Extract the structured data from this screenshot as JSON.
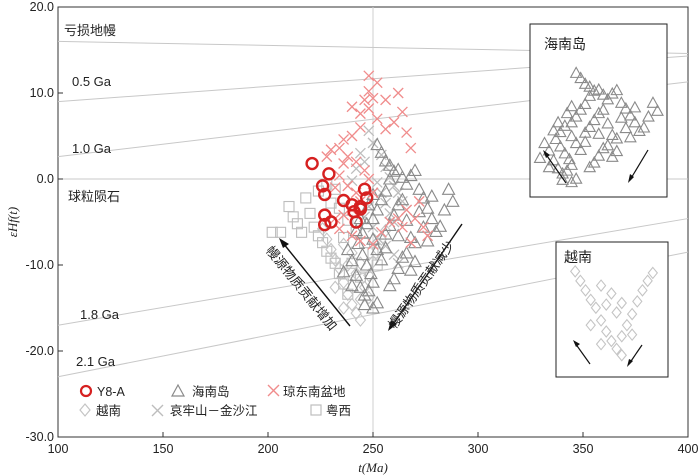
{
  "chart_data": {
    "type": "scatter",
    "xlabel": "t(Ma)",
    "ylabel": "εHf(t)",
    "xlim": [
      100,
      400
    ],
    "ylim": [
      -30,
      20
    ],
    "xticks": [
      "100",
      "150",
      "200",
      "250",
      "300",
      "350",
      "400"
    ],
    "yticks": [
      "20.0",
      "10.0",
      "0.0",
      "-10.0",
      "-20.0",
      "-30.0"
    ],
    "vertical_reference_t": 250,
    "reference_lines": [
      {
        "label": "亏损地幔",
        "y_at_100": 16.0,
        "y_at_400": 14.6
      },
      {
        "label": "0.5 Ga",
        "y_at_100": 9.0,
        "y_at_400": 14.3
      },
      {
        "label": "1.0 Ga",
        "y_at_100": 2.6,
        "y_at_400": 11.3
      },
      {
        "label": "球粒陨石",
        "y_at_100": 0.0,
        "y_at_400": 0.0
      },
      {
        "label": "1.8 Ga",
        "y_at_100": -17.0,
        "y_at_400": -4.6
      },
      {
        "label": "2.1 Ga",
        "y_at_100": -23.0,
        "y_at_400": -8.5
      }
    ],
    "annotations": [
      {
        "text": "幔源物质贡献增加",
        "direction": "up-left"
      },
      {
        "text": "幔源物质贡献减少",
        "direction": "down-left"
      }
    ],
    "legend": [
      {
        "name": "Y8-A",
        "marker": "circle",
        "color": "#d62020"
      },
      {
        "name": "海南岛",
        "marker": "triangle",
        "color": "#8a8a8a"
      },
      {
        "name": "琼东南盆地",
        "marker": "x",
        "color": "#f08c8c"
      },
      {
        "name": "越南",
        "marker": "diamond",
        "color": "#c4c4c4"
      },
      {
        "name": "哀牢山－金沙江",
        "marker": "x",
        "color": "#bdbdbd"
      },
      {
        "name": "粤西",
        "marker": "square",
        "color": "#bdbdbd"
      }
    ],
    "series": [
      {
        "name": "Y8-A",
        "marker": "circle",
        "color": "#d62020",
        "points": [
          [
            221,
            1.8
          ],
          [
            226,
            -0.8
          ],
          [
            227,
            -1.8
          ],
          [
            229,
            0.6
          ],
          [
            227,
            -4.2
          ],
          [
            227,
            -5.3
          ],
          [
            230,
            -5.0
          ],
          [
            236,
            -2.5
          ],
          [
            240,
            -3.0
          ],
          [
            241,
            -3.8
          ],
          [
            244,
            -3.2
          ],
          [
            246,
            -1.2
          ],
          [
            247,
            -2.2
          ],
          [
            242,
            -5.0
          ],
          [
            244,
            -3.5
          ]
        ]
      },
      {
        "name": "海南岛",
        "marker": "triangle",
        "color": "#8a8a8a",
        "points": [
          [
            238,
            -8.2
          ],
          [
            240,
            -9.5
          ],
          [
            242,
            -11.2
          ],
          [
            244,
            -12.6
          ],
          [
            246,
            -13.5
          ],
          [
            248,
            -13.0
          ],
          [
            250,
            -12.0
          ],
          [
            252,
            -14.4
          ],
          [
            249,
            -11.0
          ],
          [
            247,
            -10.0
          ],
          [
            245,
            -8.8
          ],
          [
            243,
            -7.5
          ],
          [
            245,
            -6.3
          ],
          [
            247,
            -5.2
          ],
          [
            250,
            -4.6
          ],
          [
            252,
            -3.6
          ],
          [
            254,
            -2.4
          ],
          [
            256,
            -1.4
          ],
          [
            258,
            0.0
          ],
          [
            260,
            0.9
          ],
          [
            262,
            1.1
          ],
          [
            264,
            0.2
          ],
          [
            266,
            -0.6
          ],
          [
            268,
            0.4
          ],
          [
            270,
            1.0
          ],
          [
            272,
            -1.2
          ],
          [
            274,
            -2.2
          ],
          [
            276,
            -3.4
          ],
          [
            278,
            -4.6
          ],
          [
            280,
            -6.1
          ],
          [
            282,
            -5.5
          ],
          [
            268,
            -6.8
          ],
          [
            270,
            -7.4
          ],
          [
            266,
            -8.6
          ],
          [
            264,
            -9.1
          ],
          [
            262,
            -10.4
          ],
          [
            260,
            -11.6
          ],
          [
            258,
            -12.4
          ],
          [
            254,
            -9.4
          ],
          [
            252,
            -8.2
          ],
          [
            250,
            -7.0
          ],
          [
            256,
            -6.4
          ],
          [
            258,
            -5.4
          ],
          [
            260,
            -4.2
          ],
          [
            262,
            -3.0
          ],
          [
            264,
            -2.4
          ],
          [
            252,
            4.0
          ],
          [
            254,
            3.1
          ],
          [
            256,
            2.1
          ],
          [
            258,
            1.6
          ],
          [
            250,
            -1.8
          ],
          [
            248,
            -3.0
          ],
          [
            270,
            -9.6
          ],
          [
            268,
            -10.6
          ],
          [
            274,
            -5.6
          ],
          [
            276,
            -7.2
          ],
          [
            286,
            -1.2
          ],
          [
            288,
            -2.6
          ],
          [
            284,
            -3.6
          ],
          [
            250,
            -15.0
          ],
          [
            246,
            -14.6
          ],
          [
            240,
            -12.4
          ],
          [
            236,
            -10.8
          ],
          [
            242,
            -6.0
          ],
          [
            244,
            -4.6
          ],
          [
            256,
            -8.0
          ],
          [
            262,
            -6.6
          ],
          [
            266,
            -4.8
          ],
          [
            272,
            -3.8
          ],
          [
            278,
            -2.0
          ]
        ]
      },
      {
        "name": "琼东南盆地",
        "marker": "x",
        "color": "#f08c8c",
        "points": [
          [
            248,
            10.2
          ],
          [
            252,
            11.2
          ],
          [
            250,
            9.4
          ],
          [
            246,
            9.2
          ],
          [
            244,
            7.6
          ],
          [
            248,
            8.2
          ],
          [
            252,
            7.0
          ],
          [
            256,
            5.8
          ],
          [
            260,
            6.6
          ],
          [
            264,
            7.8
          ],
          [
            266,
            5.4
          ],
          [
            268,
            3.6
          ],
          [
            244,
            6.0
          ],
          [
            240,
            5.0
          ],
          [
            236,
            4.6
          ],
          [
            234,
            3.6
          ],
          [
            238,
            2.6
          ],
          [
            242,
            2.0
          ],
          [
            246,
            1.0
          ],
          [
            248,
            0.0
          ],
          [
            250,
            -1.6
          ],
          [
            236,
            1.8
          ],
          [
            234,
            0.4
          ],
          [
            232,
            -1.0
          ],
          [
            238,
            -0.8
          ],
          [
            242,
            -1.6
          ],
          [
            244,
            -2.6
          ],
          [
            240,
            -3.6
          ],
          [
            236,
            -4.2
          ],
          [
            232,
            -4.6
          ],
          [
            234,
            -5.8
          ],
          [
            240,
            -6.6
          ],
          [
            244,
            -7.2
          ],
          [
            250,
            -7.6
          ],
          [
            254,
            -6.2
          ],
          [
            258,
            -5.0
          ],
          [
            262,
            -4.6
          ],
          [
            266,
            -3.6
          ],
          [
            270,
            -4.6
          ],
          [
            274,
            -5.6
          ],
          [
            276,
            -6.6
          ],
          [
            272,
            -2.6
          ],
          [
            264,
            -5.6
          ],
          [
            268,
            -7.4
          ],
          [
            228,
            2.6
          ],
          [
            230,
            3.4
          ],
          [
            240,
            8.4
          ],
          [
            256,
            9.2
          ],
          [
            248,
            12.0
          ],
          [
            262,
            10.0
          ]
        ]
      },
      {
        "name": "越南",
        "marker": "diamond",
        "color": "#c4c4c4",
        "points": [
          [
            226,
            -5.8
          ],
          [
            228,
            -7.0
          ],
          [
            230,
            -8.2
          ],
          [
            232,
            -9.4
          ],
          [
            234,
            -10.4
          ],
          [
            236,
            -12.0
          ],
          [
            238,
            -13.4
          ],
          [
            240,
            -14.6
          ],
          [
            242,
            -15.6
          ],
          [
            244,
            -14.0
          ],
          [
            246,
            -12.6
          ],
          [
            248,
            -11.2
          ],
          [
            250,
            -9.6
          ],
          [
            252,
            -8.2
          ],
          [
            254,
            -7.0
          ],
          [
            256,
            -6.0
          ],
          [
            236,
            -7.6
          ],
          [
            240,
            -8.6
          ],
          [
            244,
            -9.8
          ],
          [
            232,
            -12.6
          ],
          [
            236,
            -15.0
          ],
          [
            244,
            -16.4
          ],
          [
            248,
            -13.8
          ],
          [
            242,
            -11.0
          ],
          [
            238,
            -10.0
          ]
        ]
      },
      {
        "name": "哀牢山－金沙江",
        "marker": "x",
        "color": "#bdbdbd",
        "points": [
          [
            250,
            4.2
          ],
          [
            254,
            2.8
          ],
          [
            256,
            1.4
          ],
          [
            258,
            0.2
          ],
          [
            260,
            -0.8
          ],
          [
            262,
            -1.6
          ],
          [
            264,
            -2.6
          ],
          [
            266,
            -3.6
          ],
          [
            252,
            -0.4
          ],
          [
            254,
            -1.6
          ],
          [
            256,
            -2.8
          ],
          [
            258,
            -4.0
          ],
          [
            260,
            -5.0
          ],
          [
            248,
            -3.2
          ],
          [
            246,
            -4.4
          ],
          [
            250,
            -5.6
          ],
          [
            252,
            -6.8
          ],
          [
            256,
            -7.8
          ],
          [
            260,
            -8.8
          ],
          [
            262,
            -9.8
          ],
          [
            244,
            3.0
          ],
          [
            246,
            2.0
          ],
          [
            242,
            1.2
          ],
          [
            240,
            -0.2
          ],
          [
            248,
            5.6
          ]
        ]
      },
      {
        "name": "粤西",
        "marker": "square",
        "color": "#bdbdbd",
        "points": [
          [
            210,
            -3.2
          ],
          [
            212,
            -4.4
          ],
          [
            214,
            -5.2
          ],
          [
            216,
            -6.2
          ],
          [
            218,
            -2.2
          ],
          [
            220,
            -4.0
          ],
          [
            222,
            -5.6
          ],
          [
            224,
            -6.6
          ],
          [
            226,
            -7.4
          ],
          [
            228,
            -8.4
          ],
          [
            230,
            -9.2
          ],
          [
            232,
            -9.8
          ],
          [
            234,
            -11.0
          ],
          [
            236,
            -12.2
          ],
          [
            238,
            -13.4
          ],
          [
            230,
            -2.8
          ],
          [
            234,
            -3.4
          ],
          [
            238,
            -4.8
          ],
          [
            242,
            -6.2
          ],
          [
            246,
            -7.4
          ],
          [
            250,
            -8.6
          ],
          [
            252,
            -10.0
          ],
          [
            206,
            -6.2
          ],
          [
            202,
            -6.2
          ],
          [
            224,
            -1.4
          ],
          [
            228,
            -0.6
          ],
          [
            232,
            -1.2
          ],
          [
            236,
            -6.8
          ],
          [
            240,
            -9.8
          ],
          [
            244,
            -11.4
          ]
        ]
      }
    ],
    "insets": [
      {
        "title": "海南岛",
        "marker": "triangle",
        "color": "#8a8a8a"
      },
      {
        "title": "越南",
        "marker": "diamond",
        "color": "#c4c4c4"
      }
    ]
  }
}
